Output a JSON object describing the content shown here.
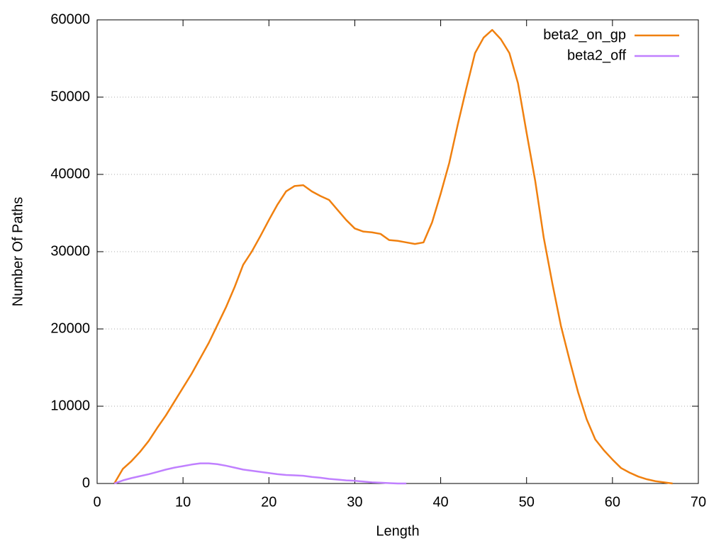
{
  "chart_data": {
    "type": "line",
    "xlabel": "Length",
    "ylabel": "Number Of Paths",
    "xlim": [
      0,
      70
    ],
    "xticks": [
      0,
      10,
      20,
      30,
      40,
      50,
      60,
      70
    ],
    "ylim": [
      0,
      60000
    ],
    "yticks": [
      0,
      10000,
      20000,
      30000,
      40000,
      50000,
      60000
    ],
    "grid": true,
    "legend": "top-right",
    "series": [
      {
        "name": "beta2_on_gp",
        "color": "#f0800f",
        "x": [
          2,
          3,
          4,
          5,
          6,
          7,
          8,
          9,
          10,
          11,
          12,
          13,
          14,
          15,
          16,
          17,
          18,
          19,
          20,
          21,
          22,
          23,
          24,
          25,
          26,
          27,
          28,
          29,
          30,
          31,
          32,
          33,
          34,
          35,
          36,
          37,
          38,
          39,
          40,
          41,
          42,
          43,
          44,
          45,
          46,
          47,
          48,
          49,
          50,
          51,
          52,
          53,
          54,
          55,
          56,
          57,
          58,
          59,
          60,
          61,
          62,
          63,
          64,
          65,
          66,
          67
        ],
        "values": [
          0,
          1900,
          2900,
          4100,
          5500,
          7200,
          8800,
          10600,
          12400,
          14200,
          16200,
          18200,
          20500,
          22800,
          25400,
          28300,
          30000,
          32000,
          34100,
          36100,
          37800,
          38500,
          38600,
          37800,
          37200,
          36700,
          35400,
          34100,
          33000,
          32600,
          32500,
          32300,
          31500,
          31400,
          31200,
          31000,
          31200,
          33800,
          37500,
          41500,
          46500,
          51200,
          55700,
          57700,
          58700,
          57500,
          55700,
          51800,
          45400,
          39200,
          31800,
          25900,
          20400,
          16000,
          11800,
          8300,
          5700,
          4300,
          3100,
          2000,
          1400,
          900,
          550,
          300,
          150,
          0
        ]
      },
      {
        "name": "beta2_off",
        "color": "#c080ff",
        "x": [
          2,
          3,
          4,
          5,
          6,
          7,
          8,
          9,
          10,
          11,
          12,
          13,
          14,
          15,
          16,
          17,
          18,
          19,
          20,
          21,
          22,
          23,
          24,
          25,
          26,
          27,
          28,
          29,
          30,
          31,
          32,
          33,
          34,
          35,
          36
        ],
        "values": [
          0,
          400,
          700,
          950,
          1200,
          1500,
          1800,
          2050,
          2250,
          2450,
          2600,
          2600,
          2500,
          2300,
          2050,
          1800,
          1650,
          1500,
          1350,
          1200,
          1100,
          1050,
          1000,
          850,
          750,
          600,
          500,
          400,
          350,
          250,
          150,
          100,
          50,
          0,
          0
        ]
      }
    ]
  }
}
